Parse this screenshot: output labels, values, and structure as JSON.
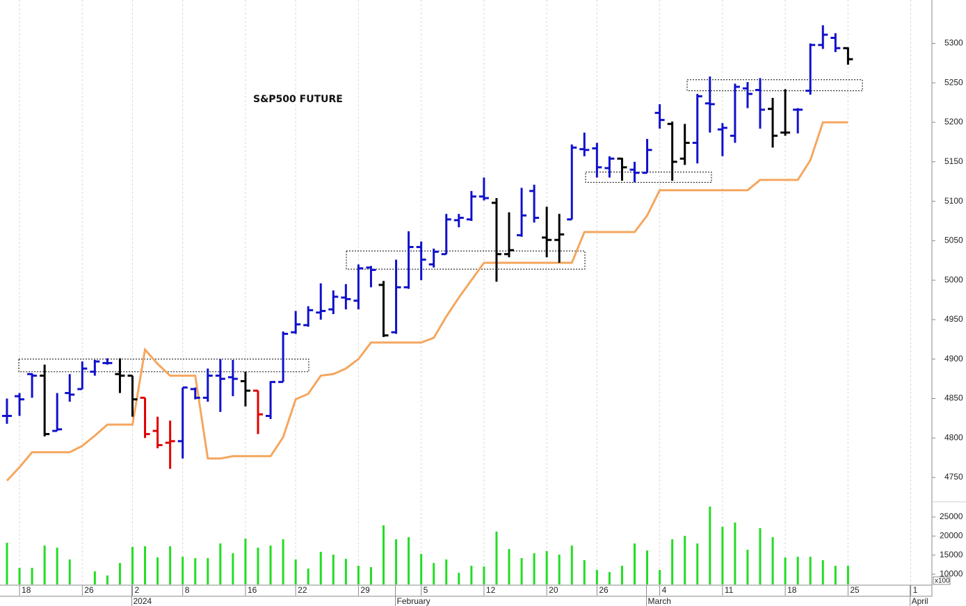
{
  "chart_data": {
    "type": "ohlc",
    "title": "S&P500 FUTURE",
    "categories": [
      null,
      "18",
      null,
      null,
      null,
      null,
      "26",
      null,
      null,
      null,
      "2",
      null,
      null,
      null,
      "8",
      null,
      null,
      null,
      null,
      "16",
      null,
      null,
      null,
      "22",
      null,
      null,
      null,
      null,
      "29",
      null,
      null,
      null,
      null,
      "5",
      null,
      null,
      null,
      null,
      "12",
      null,
      null,
      null,
      null,
      "20",
      null,
      null,
      null,
      "26",
      null,
      null,
      null,
      null,
      "4",
      null,
      null,
      null,
      null,
      "11",
      null,
      null,
      null,
      null,
      "18",
      null,
      null,
      null,
      null,
      "25",
      null,
      null,
      null,
      null,
      "1"
    ],
    "month_labels": [
      null,
      null,
      null,
      null,
      null,
      null,
      null,
      null,
      null,
      null,
      "2024",
      null,
      null,
      null,
      null,
      null,
      null,
      null,
      null,
      null,
      null,
      null,
      null,
      null,
      null,
      null,
      null,
      null,
      null,
      null,
      null,
      "February",
      null,
      null,
      null,
      null,
      null,
      null,
      null,
      null,
      null,
      null,
      null,
      null,
      null,
      null,
      null,
      null,
      null,
      null,
      null,
      "March",
      null,
      null,
      null,
      null,
      null,
      null,
      null,
      null,
      null,
      null,
      null,
      null,
      null,
      null,
      null,
      null,
      null,
      null,
      null,
      null,
      "April"
    ],
    "open": [
      4828,
      4853,
      4881,
      4879,
      4809,
      4857,
      4862,
      4884,
      4895,
      4881,
      4879,
      4851,
      4809,
      4794,
      4796,
      4862,
      4851,
      4879,
      4877,
      4872,
      4860,
      4828,
      4871,
      4934,
      4943,
      4959,
      4963,
      4978,
      4974,
      5016,
      4994,
      4934,
      4991,
      5042,
      5020,
      5033,
      5076,
      5077,
      5106,
      5098,
      5033,
      5057,
      5113,
      5054,
      5051,
      5077,
      5166,
      5167,
      5142,
      5154,
      5140,
      5136,
      5212,
      5198,
      5154,
      5174,
      5224,
      5191,
      5183,
      5243,
      5241,
      5217,
      5187,
      5216,
      5240,
      5298,
      5307,
      5294,
      null,
      null,
      null,
      null,
      null
    ],
    "high": [
      4850,
      4857,
      4882,
      4893,
      4857,
      4881,
      4897,
      4899,
      4901,
      4901,
      4879,
      4851,
      4827,
      4822,
      4864,
      4864,
      4888,
      4900,
      4899,
      4884,
      4860,
      4872,
      4935,
      4961,
      4967,
      4996,
      4987,
      4995,
      5020,
      5018,
      4999,
      5026,
      5062,
      5049,
      5040,
      5084,
      5084,
      5113,
      5130,
      5104,
      5086,
      5117,
      5121,
      5093,
      5084,
      5172,
      5187,
      5174,
      5157,
      5155,
      5150,
      5179,
      5223,
      5201,
      5198,
      5236,
      5258,
      5199,
      5249,
      5251,
      5256,
      5231,
      5242,
      5218,
      5300,
      5323,
      5313,
      5295,
      null,
      null,
      null,
      null,
      null
    ],
    "low": [
      4818,
      4828,
      4851,
      4802,
      4809,
      4846,
      4862,
      4879,
      4893,
      4857,
      4827,
      4800,
      4787,
      4761,
      4774,
      4849,
      4846,
      4833,
      4853,
      4840,
      4805,
      4824,
      4871,
      4932,
      4941,
      4950,
      4957,
      4963,
      4963,
      4991,
      4928,
      4932,
      4989,
      5000,
      5016,
      5033,
      5067,
      5075,
      5101,
      4998,
      5029,
      5055,
      5073,
      5029,
      5022,
      5077,
      5157,
      5130,
      5130,
      5126,
      5124,
      5136,
      5192,
      5126,
      5146,
      5148,
      5187,
      5157,
      5174,
      5218,
      5192,
      5168,
      5183,
      5186,
      5235,
      5293,
      5289,
      5273,
      null,
      null,
      null,
      null,
      null
    ],
    "close": [
      4828,
      4849,
      4879,
      4805,
      4811,
      4855,
      4888,
      4897,
      4895,
      4879,
      4849,
      4805,
      4791,
      4796,
      4864,
      4851,
      4879,
      4875,
      4875,
      4860,
      4830,
      4871,
      4932,
      4944,
      4962,
      4961,
      4979,
      4976,
      5015,
      5013,
      4930,
      4991,
      5042,
      5026,
      5036,
      5077,
      5079,
      5106,
      5104,
      5033,
      5038,
      5082,
      5079,
      5051,
      5058,
      5168,
      5165,
      5143,
      5154,
      5143,
      5136,
      5165,
      5203,
      5150,
      5174,
      5233,
      5223,
      5193,
      5245,
      5236,
      5216,
      5183,
      5187,
      5216,
      5298,
      5311,
      5294,
      5280,
      null,
      null,
      null,
      null,
      null
    ],
    "bar_colors": [
      "#1010cc",
      "#1010cc",
      "#1010cc",
      "#000000",
      "#1010cc",
      "#1010cc",
      "#1010cc",
      "#1010cc",
      "#1010cc",
      "#000000",
      "#000000",
      "#e00000",
      "#e00000",
      "#e00000",
      "#1010cc",
      "#1010cc",
      "#1010cc",
      "#1010cc",
      "#1010cc",
      "#000000",
      "#e00000",
      "#1010cc",
      "#1010cc",
      "#1010cc",
      "#1010cc",
      "#1010cc",
      "#1010cc",
      "#1010cc",
      "#1010cc",
      "#1010cc",
      "#000000",
      "#1010cc",
      "#1010cc",
      "#1010cc",
      "#1010cc",
      "#1010cc",
      "#1010cc",
      "#1010cc",
      "#1010cc",
      "#000000",
      "#000000",
      "#1010cc",
      "#1010cc",
      "#000000",
      "#000000",
      "#1010cc",
      "#1010cc",
      "#1010cc",
      "#1010cc",
      "#000000",
      "#1010cc",
      "#1010cc",
      "#1010cc",
      "#000000",
      "#000000",
      "#1010cc",
      "#1010cc",
      "#1010cc",
      "#1010cc",
      "#1010cc",
      "#1010cc",
      "#000000",
      "#000000",
      "#1010cc",
      "#1010cc",
      "#1010cc",
      "#1010cc",
      "#000000",
      null,
      null,
      null,
      null,
      null
    ],
    "stop_line": {
      "color": "#f5a65e",
      "values": [
        4746,
        4763,
        4782,
        4782,
        4782,
        4782,
        4790,
        4803,
        4817,
        4817,
        4817,
        4912,
        4894,
        4879,
        4879,
        4879,
        4774,
        4774,
        4777,
        4777,
        4777,
        4777,
        4801,
        4849,
        4856,
        4879,
        4881,
        4888,
        4900,
        4921,
        4921,
        4921,
        4921,
        4921,
        4927,
        4954,
        4978,
        5000,
        5022,
        5022,
        5022,
        5022,
        5022,
        5022,
        5022,
        5022,
        5061,
        5061,
        5061,
        5061,
        5061,
        5082,
        5114,
        5114,
        5114,
        5114,
        5114,
        5114,
        5114,
        5114,
        5127,
        5127,
        5127,
        5127,
        5152,
        5200,
        5200,
        5200,
        null,
        null,
        null,
        null,
        null
      ]
    },
    "zones": [
      {
        "low": 4884,
        "high": 4900
      },
      {
        "low": 5014,
        "high": 5037
      },
      {
        "low": 5124,
        "high": 5137
      },
      {
        "low": 5240,
        "high": 5254
      }
    ],
    "ylim": [
      4721,
      5355
    ],
    "yticks": [
      4750,
      4800,
      4850,
      4900,
      4950,
      5000,
      5050,
      5100,
      5150,
      5200,
      5250,
      5300
    ],
    "grid": true,
    "volume": {
      "color": "#22dd22",
      "unit_label": "x100",
      "ylim": [
        7300,
        29000
      ],
      "yticks": [
        10000,
        15000,
        20000,
        25000
      ],
      "values": [
        18240,
        11650,
        11650,
        17500,
        16950,
        13850,
        null,
        10740,
        9650,
        12930,
        17140,
        17320,
        14400,
        17320,
        14580,
        14210,
        14210,
        18050,
        15490,
        19330,
        16950,
        17500,
        19150,
        13850,
        11470,
        15860,
        15130,
        14030,
        12200,
        11840,
        22810,
        19150,
        19700,
        15310,
        12930,
        13850,
        10370,
        12200,
        12020,
        21160,
        16590,
        14210,
        15490,
        16040,
        15130,
        17500,
        13670,
        11110,
        10560,
        12200,
        18050,
        16220,
        11110,
        19150,
        20060,
        18050,
        27740,
        22440,
        23540,
        16410,
        22070,
        19700,
        14400,
        14580,
        14580,
        13670,
        12200,
        12200,
        null,
        null,
        null,
        null,
        null
      ]
    }
  }
}
